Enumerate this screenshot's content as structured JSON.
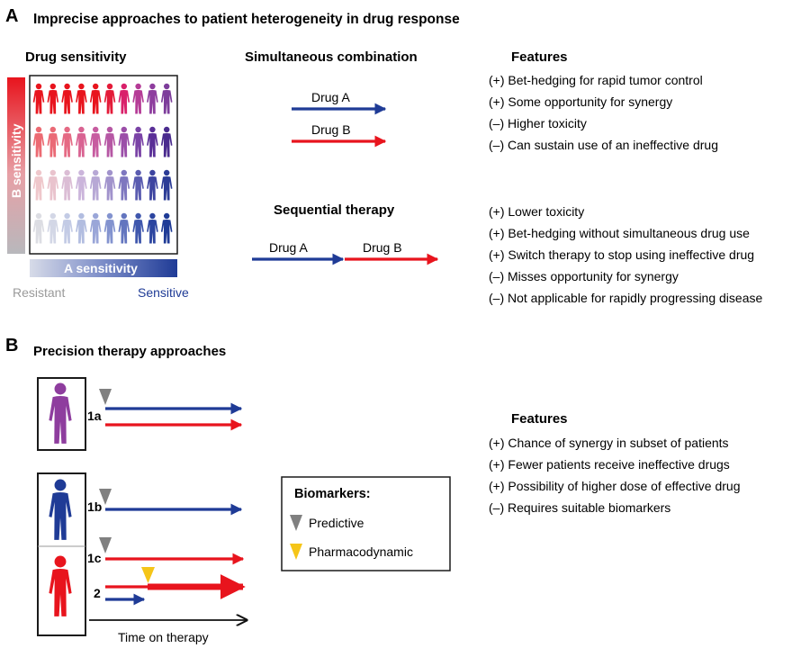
{
  "panel_a": {
    "letter": "A",
    "title": "Imprecise approaches to patient heterogeneity in drug response",
    "drug_sensitivity": {
      "heading": "Drug sensitivity",
      "b_axis_label": "B sensitivity",
      "a_axis_label": "A sensitivity",
      "resistant_label": "Resistant",
      "sensitive_label": "Sensitive",
      "grid_colors": [
        [
          "#e8141d",
          "#e8141d",
          "#e8141d",
          "#e8141d",
          "#e8141d",
          "#e41a38",
          "#d9206a",
          "#b53b96",
          "#8e3d9e",
          "#7d3d9b"
        ],
        [
          "#ec6a72",
          "#ea6a76",
          "#e56a84",
          "#d96392",
          "#c75ca0",
          "#b657a4",
          "#9b4ea8",
          "#7a43a6",
          "#5a2f97",
          "#4a2b8e"
        ],
        [
          "#efc7cb",
          "#e9c3cd",
          "#dbbdd5",
          "#cbb5db",
          "#b7a8d5",
          "#a193cc",
          "#7e77bf",
          "#5a5cb0",
          "#3d44a0",
          "#2c3c96"
        ],
        [
          "#dcdde3",
          "#d3d7e6",
          "#c3cbe5",
          "#b2bde0",
          "#9aa6d8",
          "#8393cf",
          "#6375bf",
          "#3f57ad",
          "#2c45a0",
          "#1f3b96"
        ]
      ]
    },
    "simultaneous": {
      "heading": "Simultaneous combination",
      "drug_a": "Drug A",
      "drug_b": "Drug B"
    },
    "sequential": {
      "heading": "Sequential therapy",
      "drug_a": "Drug A",
      "drug_b": "Drug B"
    },
    "features_heading": "Features",
    "features_simultaneous": [
      "(+) Bet-hedging for rapid tumor control",
      "(+) Some opportunity for synergy",
      "(–) Higher toxicity",
      "(–) Can sustain use of an ineffective drug"
    ],
    "features_sequential": [
      "(+) Lower toxicity",
      "(+) Bet-hedging without simultaneous drug use",
      "(+) Switch therapy to stop using ineffective drug",
      "(–) Misses opportunity for synergy",
      "(–) Not applicable for rapidly progressing disease"
    ]
  },
  "panel_b": {
    "letter": "B",
    "title": "Precision therapy approaches",
    "rows": {
      "r1a": "1a",
      "r1b": "1b",
      "r1c": "1c",
      "r2": "2"
    },
    "time_label": "Time on therapy",
    "legend": {
      "title": "Biomarkers:",
      "predictive": "Predictive",
      "pharmacodynamic": "Pharmacodynamic"
    },
    "features_heading": "Features",
    "features": [
      "(+) Chance of synergy in subset of patients",
      "(+) Fewer patients receive ineffective drugs",
      "(+) Possibility of higher dose of effective drug",
      "(–) Requires suitable biomarkers"
    ]
  },
  "colors": {
    "drug_a_blue": "#1f3b96",
    "drug_b_red": "#e8141d",
    "predictive_gray": "#808080",
    "pharmacodynamic_yellow": "#f5c518",
    "patient_purple": "#8e3d9e"
  }
}
